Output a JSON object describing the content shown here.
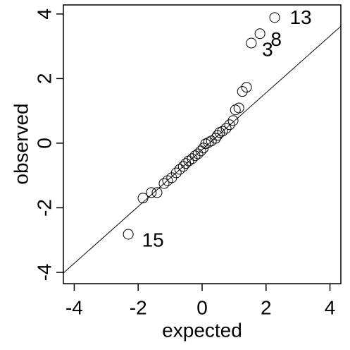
{
  "chart_data": {
    "type": "scatter",
    "xlabel": "expected",
    "ylabel": "observed",
    "x": [
      -2.31,
      -1.85,
      -1.59,
      -1.41,
      -1.19,
      -1.08,
      -0.95,
      -0.81,
      -0.7,
      -0.59,
      -0.51,
      -0.42,
      -0.31,
      -0.22,
      -0.13,
      -0.04,
      0.04,
      0.11,
      0.2,
      0.29,
      0.42,
      0.48,
      0.55,
      0.64,
      0.75,
      0.86,
      0.97,
      1.04,
      1.15,
      1.26,
      1.39,
      1.54,
      1.81,
      2.27
    ],
    "values": [
      -2.82,
      -1.7,
      -1.53,
      -1.53,
      -1.25,
      -1.16,
      -1.07,
      -0.92,
      -0.81,
      -0.72,
      -0.63,
      -0.55,
      -0.48,
      -0.39,
      -0.33,
      -0.24,
      -0.15,
      -0.02,
      0.02,
      0.07,
      0.15,
      0.24,
      0.33,
      0.37,
      0.46,
      0.57,
      0.7,
      1.03,
      1.09,
      1.6,
      1.73,
      3.1,
      3.39,
      3.89
    ],
    "annotations": [
      {
        "text": "13",
        "x": 2.27,
        "y": 3.89
      },
      {
        "text": "8",
        "x": 1.81,
        "y": 3.39
      },
      {
        "text": "3",
        "x": 1.54,
        "y": 3.1
      },
      {
        "text": "15",
        "x": -2.31,
        "y": -2.82
      }
    ],
    "reference_line": {
      "intercept": -0.2,
      "slope": 0.88
    },
    "xlim": [
      -4.34,
      4.34
    ],
    "ylim": [
      -4.35,
      4.28
    ],
    "xticks": [
      -4,
      -2,
      0,
      2,
      4
    ],
    "yticks": [
      -4,
      -2,
      0,
      2,
      4
    ],
    "grid": false
  }
}
